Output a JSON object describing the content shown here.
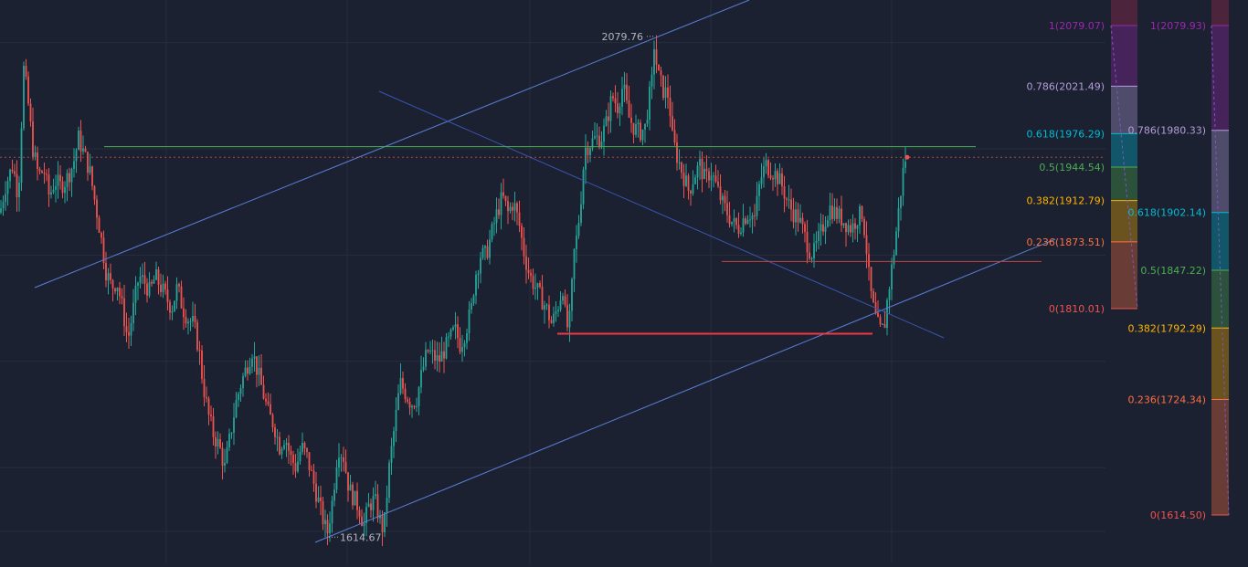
{
  "chart_data": {
    "type": "candlestick",
    "colors": {
      "background": "#1b2130",
      "grid": "#262d3c",
      "candle_up": "#26a69a",
      "candle_down": "#ef5350",
      "channel_line": "#5b7fd9",
      "horizontal_resistance": "#4caf50",
      "support_line": "#f23645",
      "mid_support_line": "#c04848",
      "current_price_line": "#ef5350",
      "extreme_label": "#b2b5be"
    },
    "y_range": [
      1590,
      2120
    ],
    "price_extremes": [
      {
        "label": "2079.76",
        "value": 2079.76
      },
      {
        "label": "1614.67",
        "value": 1614.67
      }
    ],
    "levels": {
      "resistance": 1982.0,
      "support": 1806.0,
      "mid_support": 1874.0,
      "current": 1972.0
    },
    "ohlc_points": [
      [
        0,
        1920
      ],
      [
        6,
        1945
      ],
      [
        14,
        1965
      ],
      [
        20,
        1935
      ],
      [
        26,
        2055
      ],
      [
        30,
        2030
      ],
      [
        36,
        1980
      ],
      [
        42,
        1955
      ],
      [
        48,
        1960
      ],
      [
        54,
        1935
      ],
      [
        60,
        1950
      ],
      [
        66,
        1945
      ],
      [
        72,
        1950
      ],
      [
        80,
        1965
      ],
      [
        86,
        1990
      ],
      [
        92,
        1975
      ],
      [
        98,
        1960
      ],
      [
        104,
        1930
      ],
      [
        110,
        1900
      ],
      [
        116,
        1865
      ],
      [
        122,
        1850
      ],
      [
        128,
        1855
      ],
      [
        134,
        1830
      ],
      [
        140,
        1800
      ],
      [
        146,
        1830
      ],
      [
        152,
        1860
      ],
      [
        158,
        1855
      ],
      [
        164,
        1845
      ],
      [
        170,
        1860
      ],
      [
        176,
        1850
      ],
      [
        182,
        1840
      ],
      [
        188,
        1830
      ],
      [
        194,
        1850
      ],
      [
        200,
        1830
      ],
      [
        206,
        1820
      ],
      [
        212,
        1815
      ],
      [
        218,
        1790
      ],
      [
        222,
        1760
      ],
      [
        228,
        1730
      ],
      [
        234,
        1710
      ],
      [
        240,
        1700
      ],
      [
        246,
        1680
      ],
      [
        252,
        1710
      ],
      [
        258,
        1740
      ],
      [
        264,
        1760
      ],
      [
        270,
        1775
      ],
      [
        276,
        1790
      ],
      [
        282,
        1770
      ],
      [
        288,
        1750
      ],
      [
        294,
        1730
      ],
      [
        300,
        1720
      ],
      [
        306,
        1700
      ],
      [
        312,
        1710
      ],
      [
        318,
        1690
      ],
      [
        324,
        1680
      ],
      [
        330,
        1700
      ],
      [
        336,
        1690
      ],
      [
        342,
        1670
      ],
      [
        348,
        1650
      ],
      [
        354,
        1630
      ],
      [
        358,
        1617
      ],
      [
        364,
        1650
      ],
      [
        370,
        1700
      ],
      [
        376,
        1690
      ],
      [
        382,
        1660
      ],
      [
        388,
        1650
      ],
      [
        394,
        1640
      ],
      [
        398,
        1625
      ],
      [
        404,
        1645
      ],
      [
        410,
        1650
      ],
      [
        416,
        1630
      ],
      [
        420,
        1620
      ],
      [
        426,
        1680
      ],
      [
        432,
        1720
      ],
      [
        438,
        1760
      ],
      [
        444,
        1750
      ],
      [
        450,
        1740
      ],
      [
        456,
        1745
      ],
      [
        462,
        1770
      ],
      [
        468,
        1790
      ],
      [
        474,
        1785
      ],
      [
        480,
        1780
      ],
      [
        486,
        1790
      ],
      [
        492,
        1800
      ],
      [
        498,
        1810
      ],
      [
        504,
        1795
      ],
      [
        510,
        1810
      ],
      [
        516,
        1830
      ],
      [
        520,
        1860
      ],
      [
        526,
        1880
      ],
      [
        532,
        1880
      ],
      [
        538,
        1900
      ],
      [
        544,
        1920
      ],
      [
        550,
        1935
      ],
      [
        556,
        1920
      ],
      [
        562,
        1930
      ],
      [
        568,
        1910
      ],
      [
        574,
        1880
      ],
      [
        580,
        1860
      ],
      [
        586,
        1850
      ],
      [
        592,
        1840
      ],
      [
        598,
        1830
      ],
      [
        604,
        1815
      ],
      [
        610,
        1830
      ],
      [
        616,
        1850
      ],
      [
        620,
        1810
      ],
      [
        624,
        1820
      ],
      [
        628,
        1880
      ],
      [
        632,
        1900
      ],
      [
        636,
        1935
      ],
      [
        640,
        1980
      ],
      [
        646,
        1985
      ],
      [
        652,
        1990
      ],
      [
        658,
        1990
      ],
      [
        664,
        2005
      ],
      [
        670,
        2030
      ],
      [
        676,
        2020
      ],
      [
        682,
        2040
      ],
      [
        688,
        2010
      ],
      [
        694,
        2000
      ],
      [
        700,
        1995
      ],
      [
        706,
        2000
      ],
      [
        710,
        2025
      ],
      [
        714,
        2045
      ],
      [
        716,
        2078
      ],
      [
        720,
        2050
      ],
      [
        726,
        2035
      ],
      [
        732,
        2030
      ],
      [
        736,
        1990
      ],
      [
        742,
        1970
      ],
      [
        748,
        1955
      ],
      [
        754,
        1940
      ],
      [
        760,
        1955
      ],
      [
        766,
        1965
      ],
      [
        772,
        1950
      ],
      [
        778,
        1960
      ],
      [
        784,
        1945
      ],
      [
        790,
        1930
      ],
      [
        796,
        1920
      ],
      [
        802,
        1910
      ],
      [
        808,
        1905
      ],
      [
        814,
        1915
      ],
      [
        820,
        1920
      ],
      [
        826,
        1915
      ],
      [
        832,
        1950
      ],
      [
        838,
        1965
      ],
      [
        844,
        1960
      ],
      [
        850,
        1955
      ],
      [
        856,
        1945
      ],
      [
        862,
        1930
      ],
      [
        868,
        1920
      ],
      [
        874,
        1915
      ],
      [
        880,
        1900
      ],
      [
        886,
        1885
      ],
      [
        890,
        1880
      ],
      [
        896,
        1895
      ],
      [
        902,
        1910
      ],
      [
        908,
        1925
      ],
      [
        914,
        1920
      ],
      [
        920,
        1915
      ],
      [
        926,
        1910
      ],
      [
        932,
        1905
      ],
      [
        938,
        1915
      ],
      [
        944,
        1920
      ],
      [
        948,
        1890
      ],
      [
        952,
        1850
      ],
      [
        956,
        1830
      ],
      [
        960,
        1815
      ],
      [
        964,
        1808
      ],
      [
        968,
        1812
      ],
      [
        970,
        1830
      ],
      [
        974,
        1855
      ],
      [
        978,
        1880
      ],
      [
        982,
        1910
      ],
      [
        986,
        1940
      ],
      [
        990,
        1970
      ],
      [
        993,
        1972
      ]
    ],
    "fib_panels": [
      {
        "levels": [
          {
            "ratio": 1,
            "label": "1(2079.07)",
            "price": 2079.07,
            "color": "#9c27b0"
          },
          {
            "ratio": 0.786,
            "label": "0.786(2021.49)",
            "price": 2021.49,
            "color": "#b39ddb"
          },
          {
            "ratio": 0.618,
            "label": "0.618(1976.29)",
            "price": 1976.29,
            "color": "#00bcd4"
          },
          {
            "ratio": 0.5,
            "label": "0.5(1944.54)",
            "price": 1944.54,
            "color": "#4caf50"
          },
          {
            "ratio": 0.382,
            "label": "0.382(1912.79)",
            "price": 1912.79,
            "color": "#ffb300"
          },
          {
            "ratio": 0.236,
            "label": "0.236(1873.51)",
            "price": 1873.51,
            "color": "#ff7043"
          },
          {
            "ratio": 0,
            "label": "0(1810.01)",
            "price": 1810.01,
            "color": "#ef5350"
          }
        ]
      },
      {
        "levels": [
          {
            "ratio": 1,
            "label": "1(2079.93)",
            "price": 2079.93,
            "color": "#9c27b0"
          },
          {
            "ratio": 0.786,
            "label": "0.786(1980.33)",
            "price": 1980.33,
            "color": "#b39ddb"
          },
          {
            "ratio": 0.618,
            "label": "0.618(1902.14)",
            "price": 1902.14,
            "color": "#00bcd4"
          },
          {
            "ratio": 0.5,
            "label": "0.5(1847.22)",
            "price": 1847.22,
            "color": "#4caf50"
          },
          {
            "ratio": 0.382,
            "label": "0.382(1792.29)",
            "price": 1792.29,
            "color": "#ffb300"
          },
          {
            "ratio": 0.236,
            "label": "0.236(1724.34)",
            "price": 1724.34,
            "color": "#ff7043"
          },
          {
            "ratio": 0,
            "label": "0(1614.50)",
            "price": 1614.5,
            "color": "#ef5350"
          }
        ]
      }
    ]
  }
}
